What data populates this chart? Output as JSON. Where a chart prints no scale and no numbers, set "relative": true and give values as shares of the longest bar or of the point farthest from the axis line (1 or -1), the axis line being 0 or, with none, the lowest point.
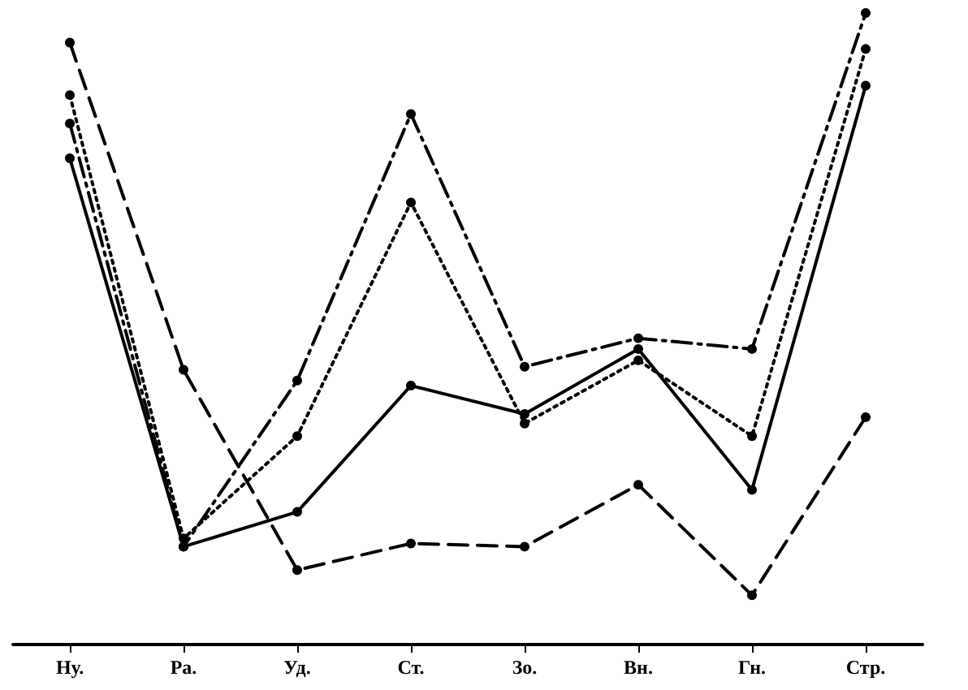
{
  "chart_data": {
    "type": "line",
    "relative": true,
    "categories": [
      "Ну.",
      "Ра.",
      "Уд.",
      "Ст.",
      "Зо.",
      "Вн.",
      "Гн.",
      "Стр."
    ],
    "grid": false,
    "marker": "circle",
    "series": [
      {
        "color": "#000000",
        "line_style": "solid",
        "values": [
          0.77,
          0.155,
          0.21,
          0.41,
          0.365,
          0.468,
          0.245,
          0.885
        ]
      },
      {
        "color": "#000000",
        "line_style": "dotted",
        "values": [
          0.87,
          0.168,
          0.33,
          0.7,
          0.35,
          0.45,
          0.33,
          0.943
        ]
      },
      {
        "color": "#000000",
        "line_style": "dashdot",
        "values": [
          0.825,
          0.155,
          0.418,
          0.84,
          0.44,
          0.485,
          0.468,
          1
        ]
      },
      {
        "color": "#000000",
        "line_style": "dashed",
        "values": [
          0.953,
          0.435,
          0.118,
          0.16,
          0.155,
          0.253,
          0.078,
          0.36
        ]
      }
    ]
  }
}
